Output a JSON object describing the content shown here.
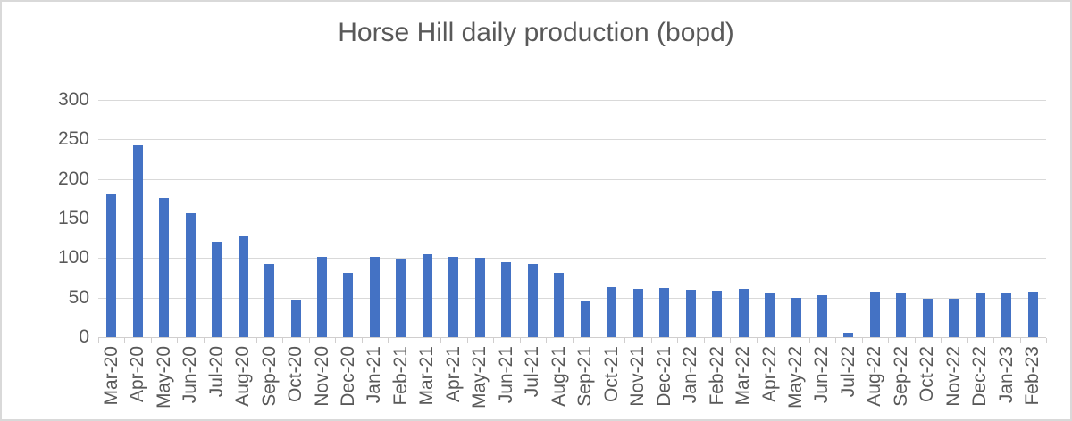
{
  "chart": {
    "title": "Horse Hill daily production (bopd)",
    "colors": {
      "bar": "#4472C4",
      "gridline": "#D9D9D9",
      "axis": "#D0CECE",
      "text": "#595959",
      "frame_border": "#D9D9D9",
      "background": "#FFFFFF"
    }
  },
  "chart_data": {
    "type": "bar",
    "title": "Horse Hill daily production (bopd)",
    "xlabel": "",
    "ylabel": "",
    "ylim": [
      0,
      300
    ],
    "yticks": [
      0,
      50,
      100,
      150,
      200,
      250,
      300
    ],
    "grid": "horizontal",
    "legend": "none",
    "categories": [
      "Mar-20",
      "Apr-20",
      "May-20",
      "Jun-20",
      "Jul-20",
      "Aug-20",
      "Sep-20",
      "Oct-20",
      "Nov-20",
      "Dec-20",
      "Jan-21",
      "Feb-21",
      "Mar-21",
      "Apr-21",
      "May-21",
      "Jun-21",
      "Jul-21",
      "Aug-21",
      "Sep-21",
      "Oct-21",
      "Nov-21",
      "Dec-21",
      "Jan-22",
      "Feb-22",
      "Mar-22",
      "Apr-22",
      "May-22",
      "Jun-22",
      "Jul-22",
      "Aug-22",
      "Sep-22",
      "Oct-22",
      "Nov-22",
      "Dec-22",
      "Jan-23",
      "Feb-23"
    ],
    "values": [
      181,
      243,
      176,
      157,
      121,
      127,
      93,
      47,
      101,
      81,
      102,
      99,
      105,
      101,
      100,
      95,
      92,
      81,
      45,
      63,
      61,
      62,
      60,
      59,
      61,
      55,
      50,
      53,
      6,
      58,
      56,
      48,
      49,
      55,
      56,
      58
    ]
  }
}
